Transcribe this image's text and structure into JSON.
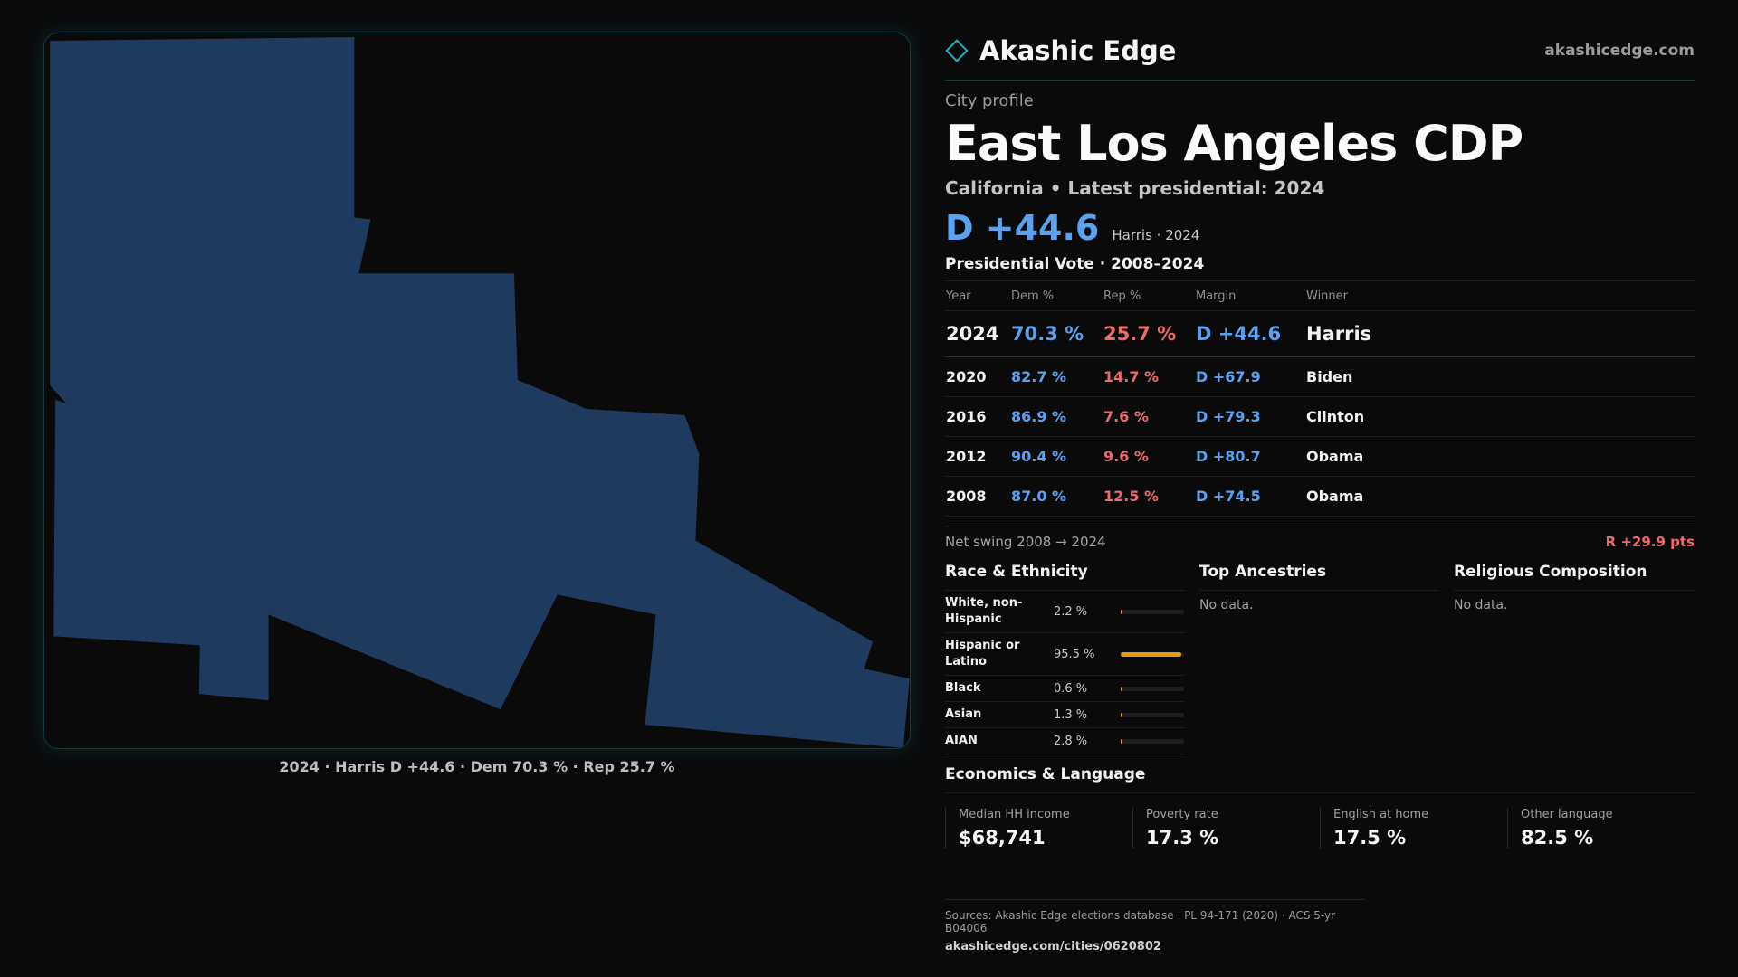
{
  "map": {
    "caption": "2024 · Harris D +44.6 · Dem 70.3 % · Rep 25.7 %",
    "fill_color": "#1f3a5f"
  },
  "brand": {
    "name": "Akashic Edge",
    "url": "akashicedge.com"
  },
  "header": {
    "kicker": "City profile",
    "title": "East Los Angeles CDP",
    "subtitle": "California • Latest presidential: 2024",
    "headline_margin": "D +44.6",
    "headline_note": "Harris · 2024"
  },
  "votes": {
    "title": "Presidential Vote · 2008–2024",
    "columns": [
      "Year",
      "Dem %",
      "Rep %",
      "Margin",
      "Winner"
    ],
    "rows": [
      {
        "year": "2024",
        "dem": "70.3 %",
        "rep": "25.7 %",
        "margin": "D +44.6",
        "winner": "Harris"
      },
      {
        "year": "2020",
        "dem": "82.7 %",
        "rep": "14.7 %",
        "margin": "D +67.9",
        "winner": "Biden"
      },
      {
        "year": "2016",
        "dem": "86.9 %",
        "rep": "7.6 %",
        "margin": "D +79.3",
        "winner": "Clinton"
      },
      {
        "year": "2012",
        "dem": "90.4 %",
        "rep": "9.6 %",
        "margin": "D +80.7",
        "winner": "Obama"
      },
      {
        "year": "2008",
        "dem": "87.0 %",
        "rep": "12.5 %",
        "margin": "D +74.5",
        "winner": "Obama"
      }
    ],
    "swing_label": "Net swing 2008 → 2024",
    "swing_value": "R +29.9 pts"
  },
  "race": {
    "title": "Race & Ethnicity",
    "items": [
      {
        "name": "White, non-Hispanic",
        "pct": "2.2 %",
        "value": 2.2
      },
      {
        "name": "Hispanic or Latino",
        "pct": "95.5 %",
        "value": 95.5
      },
      {
        "name": "Black",
        "pct": "0.6 %",
        "value": 0.6
      },
      {
        "name": "Asian",
        "pct": "1.3 %",
        "value": 1.3
      },
      {
        "name": "AIAN",
        "pct": "2.8 %",
        "value": 2.8
      }
    ]
  },
  "ancestries": {
    "title": "Top Ancestries",
    "empty": "No data."
  },
  "religion": {
    "title": "Religious Composition",
    "empty": "No data."
  },
  "economics": {
    "title": "Economics & Language",
    "items": [
      {
        "label": "Median HH income",
        "value": "$68,741"
      },
      {
        "label": "Poverty rate",
        "value": "17.3 %"
      },
      {
        "label": "English at home",
        "value": "17.5 %"
      },
      {
        "label": "Other language",
        "value": "82.5 %"
      }
    ]
  },
  "footer": {
    "sources": "Sources: Akashic Edge elections database · PL 94-171 (2020) · ACS 5-yr B04006",
    "url": "akashicedge.com/cities/0620802"
  },
  "colors": {
    "dem": "#5aa2f0",
    "rep": "#f06a6a",
    "bar": "#e09a1c",
    "accent": "#1fb0b8"
  }
}
